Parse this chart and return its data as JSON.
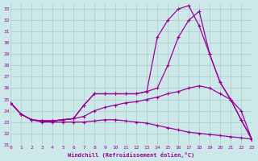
{
  "xlabel": "Windchill (Refroidissement éolien,°C)",
  "bg_color": "#cde8e8",
  "grid_color": "#aacccc",
  "line_color": "#990099",
  "xlim": [
    0,
    23
  ],
  "ylim": [
    21,
    33.5
  ],
  "yticks": [
    21,
    22,
    23,
    24,
    25,
    26,
    27,
    28,
    29,
    30,
    31,
    32,
    33
  ],
  "xticks": [
    0,
    1,
    2,
    3,
    4,
    5,
    6,
    7,
    8,
    9,
    10,
    11,
    12,
    13,
    14,
    15,
    16,
    17,
    18,
    19,
    20,
    21,
    22,
    23
  ],
  "line1_x": [
    0,
    1,
    2,
    3,
    4,
    5,
    6,
    7,
    8,
    9,
    10,
    11,
    12,
    13,
    14,
    15,
    16,
    17,
    18,
    19,
    20,
    21,
    22,
    23
  ],
  "line1_y": [
    24.7,
    23.7,
    23.2,
    23.0,
    23.0,
    23.0,
    23.0,
    23.0,
    23.1,
    23.2,
    23.2,
    23.1,
    23.0,
    22.9,
    22.7,
    22.5,
    22.3,
    22.1,
    22.0,
    21.9,
    21.8,
    21.7,
    21.6,
    21.5
  ],
  "line2_x": [
    0,
    1,
    2,
    3,
    4,
    5,
    6,
    7,
    8,
    9,
    10,
    11,
    12,
    13,
    14,
    15,
    16,
    17,
    18,
    19,
    20,
    21,
    22,
    23
  ],
  "line2_y": [
    24.7,
    23.7,
    23.2,
    23.1,
    23.1,
    23.2,
    23.3,
    23.5,
    24.0,
    24.3,
    24.5,
    24.7,
    24.8,
    25.0,
    25.2,
    25.5,
    25.7,
    26.0,
    26.2,
    26.0,
    25.5,
    25.0,
    24.0,
    21.5
  ],
  "line3_x": [
    0,
    1,
    2,
    3,
    4,
    5,
    6,
    7,
    8,
    9,
    10,
    11,
    12,
    13,
    14,
    15,
    16,
    17,
    18,
    19,
    20,
    21,
    22,
    23
  ],
  "line3_y": [
    24.7,
    23.7,
    23.2,
    23.1,
    23.1,
    23.2,
    23.3,
    24.5,
    25.5,
    25.5,
    25.5,
    25.5,
    25.5,
    25.7,
    26.0,
    28.0,
    30.5,
    32.0,
    32.8,
    29.0,
    26.5,
    25.0,
    23.2,
    21.5
  ],
  "line4_x": [
    0,
    1,
    2,
    3,
    4,
    5,
    6,
    7,
    8,
    9,
    10,
    11,
    12,
    13,
    14,
    15,
    16,
    17,
    18,
    19,
    20,
    21,
    22,
    23
  ],
  "line4_y": [
    24.7,
    23.7,
    23.2,
    23.1,
    23.1,
    23.2,
    23.3,
    24.5,
    25.5,
    25.5,
    25.5,
    25.5,
    25.5,
    25.7,
    30.5,
    32.0,
    33.0,
    33.3,
    31.5,
    29.0,
    26.5,
    25.0,
    23.2,
    21.5
  ]
}
